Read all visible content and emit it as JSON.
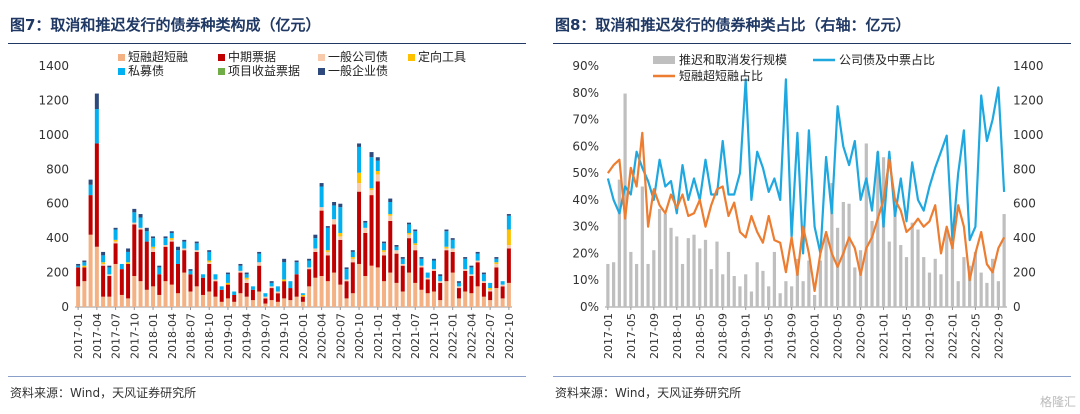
{
  "left": {
    "title": "图7：取消和推迟发行的债券种类构成（亿元）",
    "source": "资料来源：Wind，天风证券研究所"
  },
  "right": {
    "title": "图8：取消和推迟发行的债券种类占比（右轴：亿元）",
    "source": "资料来源：Wind，天风证券研究所"
  },
  "watermark": "格隆汇",
  "chart_data": [
    {
      "type": "bar",
      "stacked": true,
      "categories": [
        "2017-01",
        "2017-02",
        "2017-03",
        "2017-04",
        "2017-05",
        "2017-06",
        "2017-07",
        "2017-08",
        "2017-09",
        "2017-10",
        "2017-11",
        "2017-12",
        "2018-01",
        "2018-02",
        "2018-03",
        "2018-04",
        "2018-05",
        "2018-06",
        "2018-07",
        "2018-08",
        "2018-09",
        "2018-10",
        "2018-11",
        "2018-12",
        "2019-01",
        "2019-02",
        "2019-03",
        "2019-04",
        "2019-05",
        "2019-06",
        "2019-07",
        "2019-08",
        "2019-09",
        "2019-10",
        "2019-11",
        "2019-12",
        "2020-01",
        "2020-02",
        "2020-03",
        "2020-04",
        "2020-05",
        "2020-06",
        "2020-07",
        "2020-08",
        "2020-09",
        "2020-10",
        "2020-11",
        "2020-12",
        "2021-01",
        "2021-02",
        "2021-03",
        "2021-04",
        "2021-05",
        "2021-06",
        "2021-07",
        "2021-08",
        "2021-09",
        "2021-10",
        "2021-11",
        "2021-12",
        "2022-01",
        "2022-02",
        "2022-03",
        "2022-04",
        "2022-05",
        "2022-06",
        "2022-07",
        "2022-08",
        "2022-09",
        "2022-10"
      ],
      "tick_labels": [
        "2017-01",
        "2017-04",
        "2017-07",
        "2017-10",
        "2018-01",
        "2018-04",
        "2018-07",
        "2018-10",
        "2019-01",
        "2019-04",
        "2019-07",
        "2019-10",
        "2020-01",
        "2020-04",
        "2020-07",
        "2020-10",
        "2021-01",
        "2021-04",
        "2021-07",
        "2021-10",
        "2022-01",
        "2022-04",
        "2022-07",
        "2022-10"
      ],
      "ylim": [
        0,
        1400
      ],
      "yticks": [
        0,
        200,
        400,
        600,
        800,
        1000,
        1200,
        1400
      ],
      "legend": "top",
      "series": [
        {
          "name": "短融超短融",
          "color": "#f4b183",
          "values": [
            120,
            150,
            420,
            350,
            60,
            60,
            250,
            70,
            50,
            180,
            150,
            100,
            120,
            70,
            150,
            130,
            80,
            200,
            90,
            120,
            70,
            90,
            60,
            30,
            50,
            30,
            80,
            60,
            40,
            90,
            20,
            40,
            30,
            50,
            40,
            60,
            30,
            120,
            170,
            180,
            150,
            200,
            130,
            50,
            80,
            250,
            180,
            240,
            230,
            150,
            200,
            140,
            90,
            200,
            140,
            100,
            80,
            90,
            40,
            150,
            200,
            50,
            90,
            80,
            120,
            60,
            40,
            110,
            50,
            140
          ]
        },
        {
          "name": "中期票据",
          "color": "#c00000",
          "values": [
            110,
            80,
            230,
            600,
            180,
            120,
            120,
            150,
            200,
            300,
            300,
            280,
            200,
            120,
            200,
            250,
            170,
            130,
            100,
            200,
            100,
            160,
            90,
            70,
            80,
            40,
            120,
            80,
            60,
            150,
            30,
            70,
            50,
            100,
            70,
            130,
            30,
            100,
            150,
            380,
            150,
            280,
            260,
            100,
            180,
            420,
            250,
            410,
            500,
            150,
            300,
            170,
            150,
            200,
            190,
            130,
            80,
            120,
            100,
            180,
            120,
            60,
            120,
            100,
            140,
            80,
            50,
            120,
            70,
            200
          ]
        },
        {
          "name": "一般公司债",
          "color": "#f8cbad",
          "values": [
            0,
            0,
            0,
            0,
            10,
            10,
            10,
            0,
            0,
            10,
            10,
            0,
            20,
            0,
            10,
            10,
            0,
            10,
            0,
            10,
            0,
            10,
            10,
            0,
            0,
            0,
            10,
            20,
            0,
            20,
            10,
            10,
            10,
            0,
            0,
            0,
            0,
            10,
            20,
            20,
            20,
            30,
            20,
            10,
            20,
            50,
            30,
            30,
            40,
            20,
            30,
            20,
            10,
            20,
            30,
            10,
            10,
            10,
            10,
            10,
            20,
            10,
            10,
            10,
            10,
            10,
            10,
            20,
            10,
            20
          ]
        },
        {
          "name": "定向工具",
          "color": "#ffc000",
          "values": [
            0,
            10,
            0,
            0,
            10,
            0,
            10,
            0,
            10,
            0,
            0,
            0,
            10,
            0,
            0,
            10,
            0,
            0,
            0,
            0,
            0,
            10,
            0,
            0,
            10,
            0,
            0,
            10,
            0,
            0,
            0,
            0,
            0,
            10,
            0,
            0,
            10,
            0,
            0,
            0,
            10,
            0,
            20,
            0,
            10,
            60,
            0,
            10,
            20,
            10,
            10,
            0,
            0,
            10,
            10,
            0,
            0,
            0,
            0,
            10,
            0,
            0,
            0,
            0,
            0,
            0,
            10,
            10,
            0,
            90
          ]
        },
        {
          "name": "私募债",
          "color": "#00b0f0",
          "values": [
            10,
            20,
            60,
            200,
            40,
            40,
            60,
            30,
            60,
            60,
            60,
            60,
            50,
            40,
            40,
            30,
            80,
            40,
            20,
            40,
            20,
            50,
            30,
            20,
            50,
            20,
            30,
            20,
            20,
            50,
            20,
            20,
            30,
            100,
            40,
            70,
            10,
            40,
            60,
            120,
            130,
            80,
            150,
            60,
            30,
            150,
            30,
            180,
            60,
            40,
            70,
            20,
            30,
            50,
            70,
            40,
            30,
            50,
            30,
            90,
            50,
            20,
            60,
            40,
            40,
            40,
            30,
            20,
            20,
            80
          ]
        },
        {
          "name": "项目收益票据",
          "color": "#70ad47",
          "values": [
            0,
            0,
            0,
            0,
            0,
            0,
            0,
            0,
            0,
            0,
            0,
            0,
            0,
            0,
            0,
            0,
            0,
            0,
            0,
            0,
            0,
            0,
            0,
            0,
            0,
            0,
            0,
            0,
            0,
            0,
            0,
            0,
            0,
            0,
            0,
            0,
            0,
            0,
            0,
            0,
            0,
            0,
            0,
            0,
            0,
            0,
            0,
            0,
            0,
            0,
            0,
            0,
            0,
            0,
            0,
            0,
            0,
            0,
            0,
            0,
            0,
            0,
            0,
            0,
            0,
            0,
            0,
            0,
            0,
            0
          ]
        },
        {
          "name": "一般企业债",
          "color": "#2e4a7d",
          "values": [
            10,
            10,
            30,
            90,
            20,
            10,
            10,
            0,
            20,
            20,
            20,
            20,
            10,
            10,
            10,
            10,
            20,
            10,
            10,
            10,
            0,
            10,
            0,
            0,
            10,
            0,
            10,
            10,
            0,
            10,
            0,
            10,
            0,
            20,
            0,
            10,
            0,
            10,
            20,
            20,
            10,
            20,
            20,
            10,
            10,
            20,
            10,
            30,
            20,
            10,
            20,
            10,
            10,
            10,
            10,
            10,
            0,
            10,
            10,
            10,
            10,
            10,
            10,
            10,
            10,
            10,
            0,
            10,
            0,
            10
          ]
        }
      ]
    },
    {
      "type": "bar+line",
      "categories": [
        "2017-01",
        "2017-02",
        "2017-03",
        "2017-04",
        "2017-05",
        "2017-06",
        "2017-07",
        "2017-08",
        "2017-09",
        "2017-10",
        "2017-11",
        "2017-12",
        "2018-01",
        "2018-02",
        "2018-03",
        "2018-04",
        "2018-05",
        "2018-06",
        "2018-07",
        "2018-08",
        "2018-09",
        "2018-10",
        "2018-11",
        "2018-12",
        "2019-01",
        "2019-02",
        "2019-03",
        "2019-04",
        "2019-05",
        "2019-06",
        "2019-07",
        "2019-08",
        "2019-09",
        "2019-10",
        "2019-11",
        "2019-12",
        "2020-01",
        "2020-02",
        "2020-03",
        "2020-04",
        "2020-05",
        "2020-06",
        "2020-07",
        "2020-08",
        "2020-09",
        "2020-10",
        "2020-11",
        "2020-12",
        "2021-01",
        "2021-02",
        "2021-03",
        "2021-04",
        "2021-05",
        "2021-06",
        "2021-07",
        "2021-08",
        "2021-09",
        "2021-10",
        "2021-11",
        "2021-12",
        "2022-01",
        "2022-02",
        "2022-03",
        "2022-04",
        "2022-05",
        "2022-06",
        "2022-07",
        "2022-08",
        "2022-09",
        "2022-10"
      ],
      "tick_labels": [
        "2017-01",
        "2017-05",
        "2017-09",
        "2018-01",
        "2018-05",
        "2018-09",
        "2019-01",
        "2019-05",
        "2019-09",
        "2020-01",
        "2020-05",
        "2020-09",
        "2021-01",
        "2021-05",
        "2021-09",
        "2022-01",
        "2022-05",
        "2022-09"
      ],
      "ylim_left": [
        0,
        90
      ],
      "yticks_left": [
        "0%",
        "10%",
        "20%",
        "30%",
        "40%",
        "50%",
        "60%",
        "70%",
        "80%",
        "90%"
      ],
      "ylim_right": [
        0,
        1400
      ],
      "yticks_right": [
        0,
        200,
        400,
        600,
        800,
        1000,
        1200,
        1400
      ],
      "legend": "top",
      "series": [
        {
          "name": "推迟和取消发行规模",
          "type": "bar",
          "axis": "right",
          "color": "#bfbfbf",
          "values": [
            250,
            260,
            740,
            1240,
            320,
            250,
            700,
            250,
            330,
            570,
            540,
            460,
            410,
            250,
            400,
            420,
            340,
            390,
            220,
            380,
            190,
            320,
            180,
            120,
            190,
            90,
            260,
            210,
            120,
            320,
            80,
            150,
            120,
            280,
            150,
            270,
            70,
            270,
            420,
            720,
            460,
            610,
            600,
            230,
            330,
            950,
            500,
            900,
            870,
            380,
            630,
            360,
            290,
            490,
            450,
            290,
            200,
            280,
            190,
            450,
            400,
            150,
            290,
            240,
            320,
            200,
            140,
            280,
            150,
            540
          ]
        },
        {
          "name": "公司债及中票占比",
          "type": "line",
          "axis": "left",
          "color": "#1fa8e0",
          "values": [
            48,
            40,
            35,
            45,
            42,
            58,
            52,
            47,
            40,
            55,
            45,
            47,
            35,
            53,
            40,
            48,
            40,
            55,
            42,
            42,
            62,
            42,
            42,
            50,
            85,
            40,
            58,
            52,
            43,
            48,
            40,
            85,
            26,
            65,
            20,
            66,
            30,
            20,
            56,
            35,
            75,
            60,
            53,
            62,
            40,
            48,
            36,
            58,
            30,
            58,
            34,
            48,
            32,
            54,
            40,
            36,
            45,
            52,
            58,
            64,
            25,
            50,
            66,
            25,
            30,
            79,
            62,
            70,
            82,
            43
          ]
        },
        {
          "name": "短融超短融占比",
          "type": "line",
          "axis": "left",
          "color": "#ed7d31",
          "values": [
            50,
            53,
            55,
            33,
            52,
            45,
            65,
            30,
            44,
            38,
            35,
            42,
            37,
            42,
            34,
            35,
            40,
            30,
            38,
            44,
            45,
            34,
            39,
            28,
            26,
            34,
            28,
            24,
            34,
            25,
            24,
            13,
            26,
            12,
            30,
            20,
            6,
            20,
            28,
            20,
            15,
            20,
            26,
            22,
            12,
            22,
            26,
            33,
            40,
            55,
            40,
            36,
            28,
            30,
            33,
            30,
            32,
            38,
            20,
            30,
            22,
            38,
            30,
            10,
            20,
            28,
            16,
            13,
            22,
            26
          ]
        }
      ]
    }
  ]
}
